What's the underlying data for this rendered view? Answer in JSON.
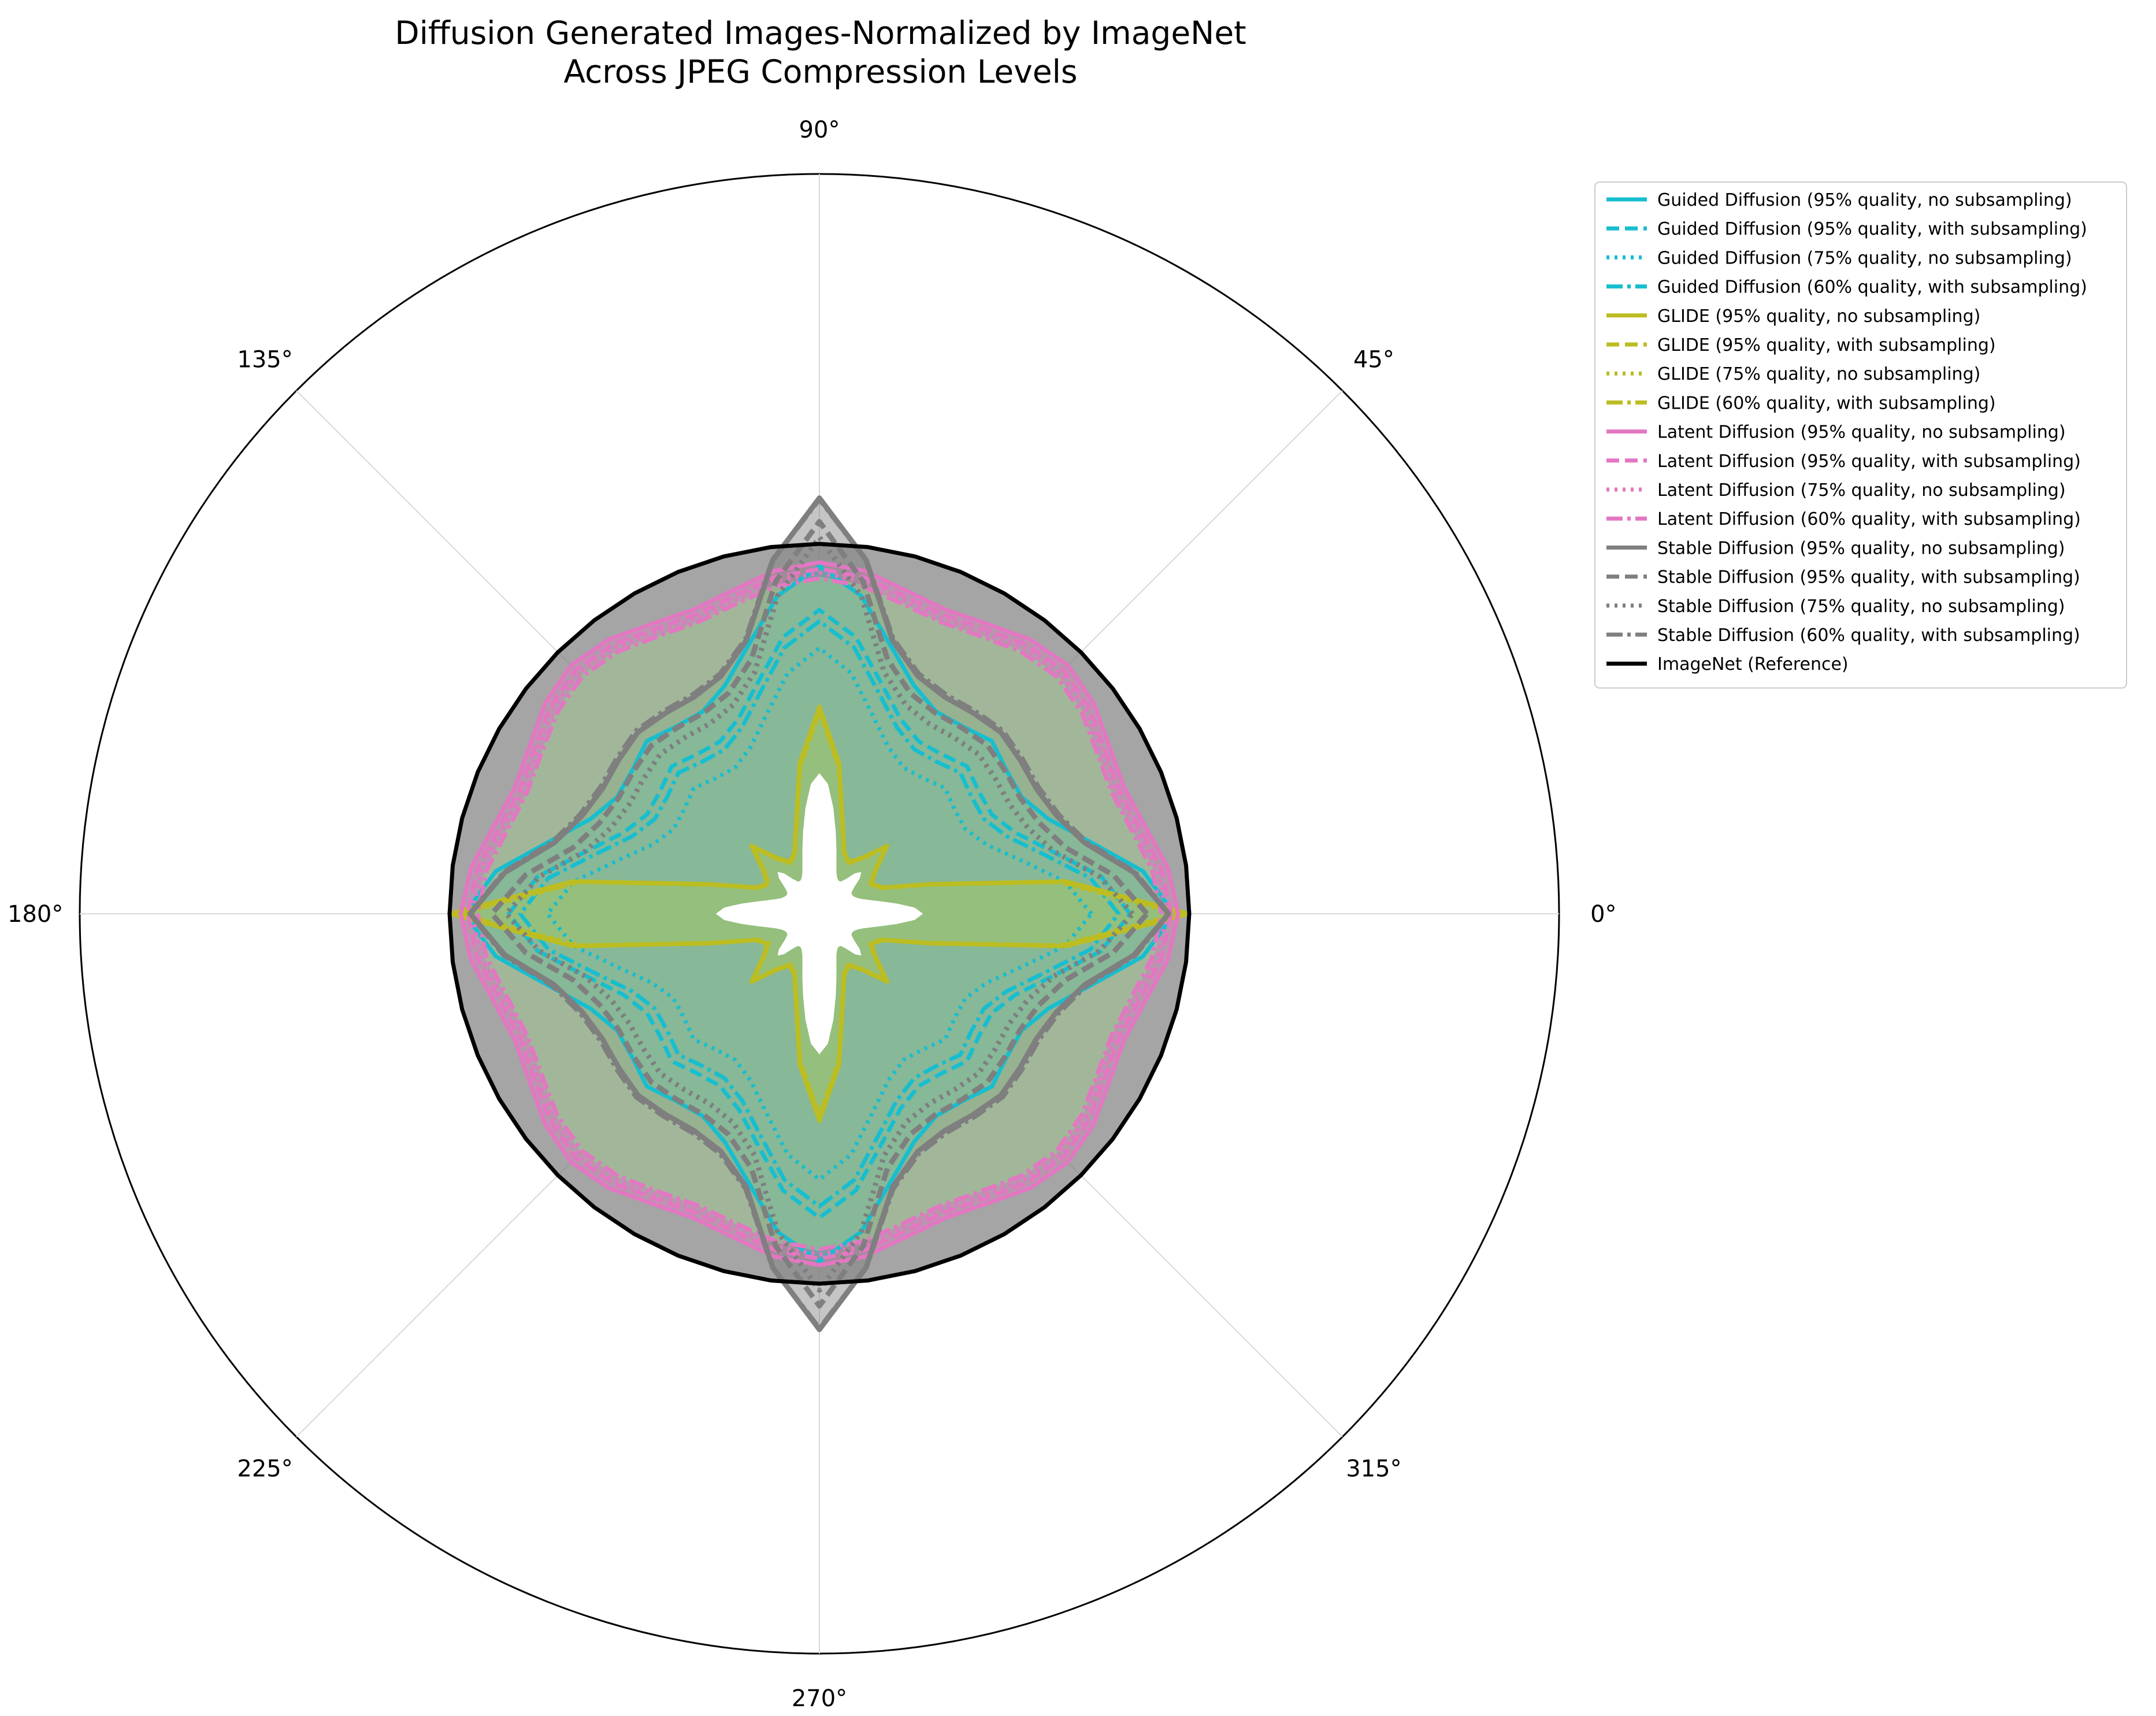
{
  "chart_data": {
    "type": "radar",
    "title": "Diffusion Generated Images-Normalized by ImageNet",
    "subtitle": "Across JPEG Compression Levels",
    "angle_ticks": [
      {
        "deg": 0,
        "label": "0°"
      },
      {
        "deg": 45,
        "label": "45°"
      },
      {
        "deg": 90,
        "label": "90°"
      },
      {
        "deg": 135,
        "label": "135°"
      },
      {
        "deg": 180,
        "label": "180°"
      },
      {
        "deg": 225,
        "label": "225°"
      },
      {
        "deg": 270,
        "label": "270°"
      },
      {
        "deg": 315,
        "label": "315°"
      }
    ],
    "rlim": [
      0,
      1.0
    ],
    "grid": true,
    "legend_position": "upper-right-outside",
    "series": [
      {
        "name": "Guided Diffusion (95% quality, no subsampling)",
        "group": "guided",
        "style": "solid",
        "color": "#17becf",
        "dr": 0,
        "dscale": 1.0
      },
      {
        "name": "Guided Diffusion (95% quality, with subsampling)",
        "group": "guided",
        "style": "dashed",
        "color": "#17becf",
        "dr": -0.02,
        "dscale": 0.92
      },
      {
        "name": "Guided Diffusion (75% quality, no subsampling)",
        "group": "guided",
        "style": "dotted",
        "color": "#17becf",
        "dr": -0.035,
        "dscale": 0.85
      },
      {
        "name": "Guided Diffusion (60% quality, with subsampling)",
        "group": "guided",
        "style": "dashdot",
        "color": "#17becf",
        "dr": -0.025,
        "dscale": 0.9
      },
      {
        "name": "GLIDE (95% quality, no subsampling)",
        "group": "glide",
        "style": "solid",
        "color": "#bcbd22",
        "dr": 0,
        "dscale": 1.0
      },
      {
        "name": "GLIDE (95% quality, with subsampling)",
        "group": "glide",
        "style": "dashed",
        "color": "#bcbd22",
        "dr": 0,
        "dscale": 0.98
      },
      {
        "name": "GLIDE (75% quality, no subsampling)",
        "group": "glide",
        "style": "dotted",
        "color": "#bcbd22",
        "dr": 0,
        "dscale": 0.97
      },
      {
        "name": "GLIDE (60% quality, with subsampling)",
        "group": "glide",
        "style": "dashdot",
        "color": "#bcbd22",
        "dr": 0,
        "dscale": 0.99
      },
      {
        "name": "Latent Diffusion (95% quality, no subsampling)",
        "group": "latent",
        "style": "solid",
        "color": "#e377c2",
        "dr": 0,
        "dscale": 1.0
      },
      {
        "name": "Latent Diffusion (95% quality, with subsampling)",
        "group": "latent",
        "style": "dashed",
        "color": "#e377c2",
        "dr": -0.012,
        "dscale": 0.95
      },
      {
        "name": "Latent Diffusion (75% quality, no subsampling)",
        "group": "latent",
        "style": "dotted",
        "color": "#e377c2",
        "dr": -0.02,
        "dscale": 0.92
      },
      {
        "name": "Latent Diffusion (60% quality, with subsampling)",
        "group": "latent",
        "style": "dashdot",
        "color": "#e377c2",
        "dr": -0.03,
        "dscale": 0.88
      },
      {
        "name": "Stable Diffusion (95% quality, no subsampling)",
        "group": "stable",
        "style": "solid",
        "color": "#7f7f7f",
        "dr": 0,
        "dscale": 1.0
      },
      {
        "name": "Stable Diffusion (95% quality, with subsampling)",
        "group": "stable",
        "style": "dashed",
        "color": "#7f7f7f",
        "dr": -0.015,
        "dscale": 0.97
      },
      {
        "name": "Stable Diffusion (75% quality, no subsampling)",
        "group": "stable",
        "style": "dotted",
        "color": "#7f7f7f",
        "dr": -0.025,
        "dscale": 0.95
      },
      {
        "name": "Stable Diffusion (60% quality, with subsampling)",
        "group": "stable",
        "style": "dashdot",
        "color": "#7f7f7f",
        "dr": 0.01,
        "dscale": 0.98
      },
      {
        "name": "ImageNet (Reference)",
        "group": "imagenet",
        "style": "solid",
        "color": "#000000",
        "dr": 0,
        "dscale": 1.0
      }
    ],
    "profiles": {
      "guided": {
        "base": 0.31,
        "spike4": 0.07,
        "spike2": 0.04,
        "spike8": 0.02,
        "fill": "#17becf",
        "fill_opacity": 0.22
      },
      "glide": {
        "base": 0.19,
        "spike4": 0.13,
        "spike2": 0,
        "spike8": -0.08,
        "spike16": 0.04,
        "fill": "#bcbd22",
        "fill_opacity": 0.35
      },
      "latent": {
        "base": 0.46,
        "spike4": 0.0,
        "spike2": 0.0,
        "spike8": 0.0,
        "fill": "#e377c2",
        "fill_opacity": 0.25
      },
      "stable": {
        "base": 0.335,
        "spike4": 0.045,
        "spike2": 0.02,
        "spike8": 0.012,
        "peak": 0.62,
        "peak_side": 0.53,
        "fill": "#7f7f7f",
        "fill_opacity": 0.4
      },
      "imagenet": {
        "base": 0.5,
        "fill": "#7f7f7f",
        "fill_opacity": 0.0
      }
    },
    "points_per_series": 48
  }
}
